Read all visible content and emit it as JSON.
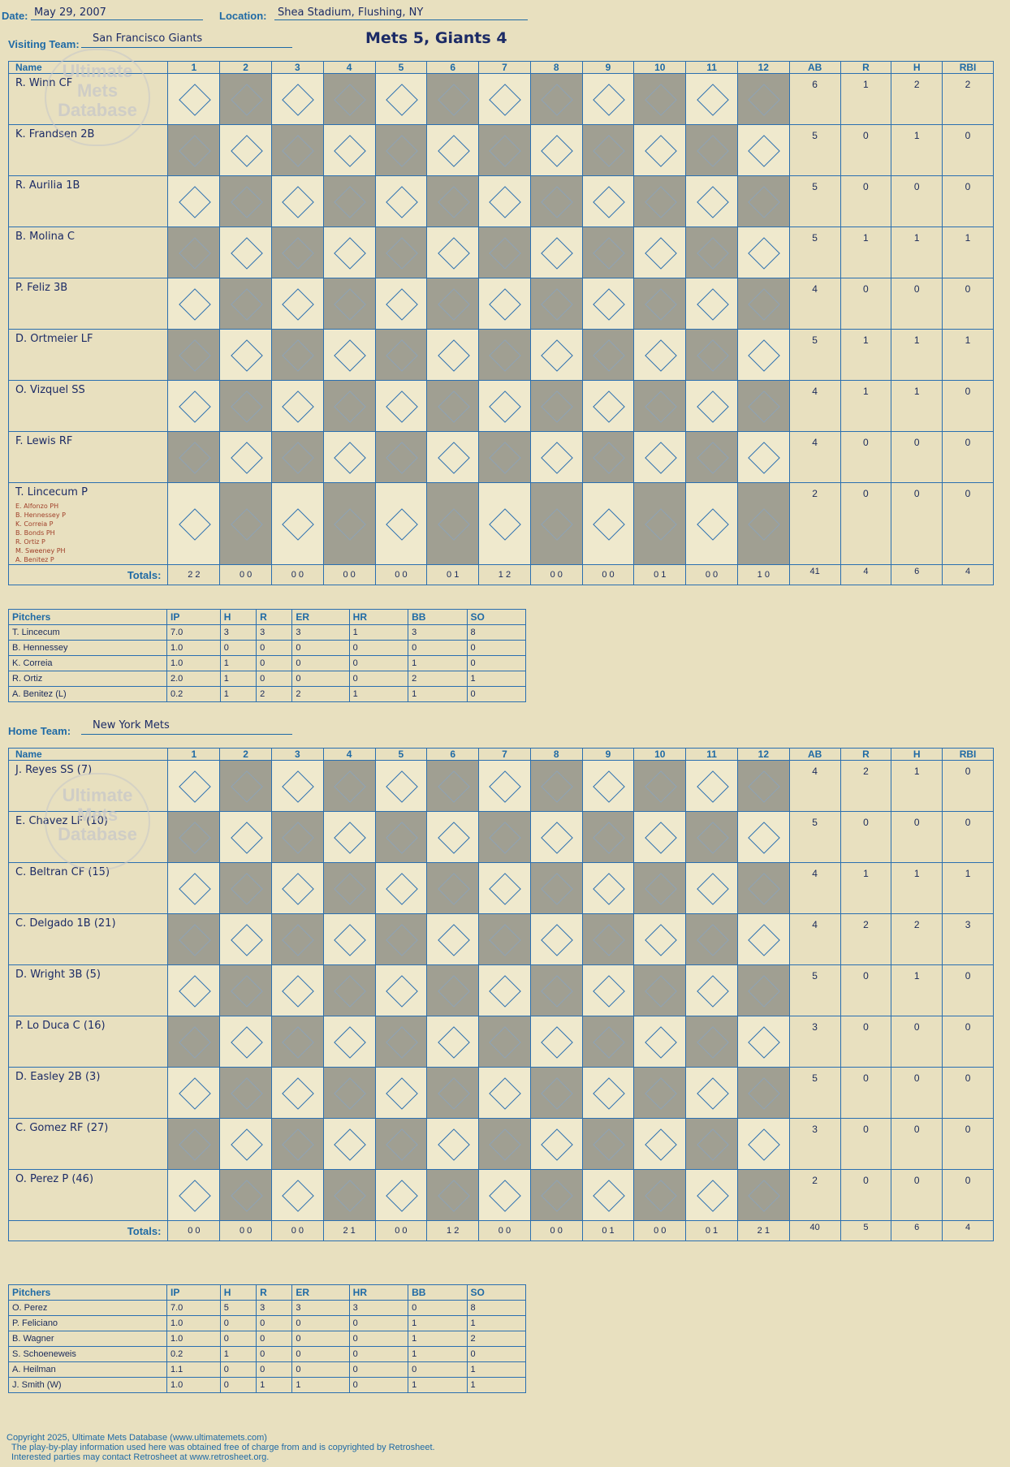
{
  "header": {
    "date_label": "Date:",
    "date": "May 29, 2007",
    "location_label": "Location:",
    "location": "Shea Stadium, Flushing, NY",
    "game_title": "Mets 5, Giants 4",
    "visiting_label": "Visiting Team:",
    "visiting_team": "San Francisco Giants",
    "home_label": "Home Team:",
    "home_team": "New York Mets"
  },
  "logo": {
    "line1": "Ultimate",
    "line2": "Mets",
    "line3": "Database"
  },
  "columns": {
    "name": "Name",
    "innings": [
      "1",
      "2",
      "3",
      "4",
      "5",
      "6",
      "7",
      "8",
      "9",
      "10",
      "11",
      "12"
    ],
    "ab": "AB",
    "r": "R",
    "h": "H",
    "rbi": "RBI"
  },
  "visitors": {
    "batters": [
      {
        "name": "R. Winn CF",
        "ab": "6",
        "r": "1",
        "h": "2",
        "rbi": "2"
      },
      {
        "name": "K. Frandsen 2B",
        "ab": "5",
        "r": "0",
        "h": "1",
        "rbi": "0"
      },
      {
        "name": "R. Aurilia 1B",
        "ab": "5",
        "r": "0",
        "h": "0",
        "rbi": "0"
      },
      {
        "name": "B. Molina C",
        "ab": "5",
        "r": "1",
        "h": "1",
        "rbi": "1"
      },
      {
        "name": "P. Feliz 3B",
        "ab": "4",
        "r": "0",
        "h": "0",
        "rbi": "0"
      },
      {
        "name": "D. Ortmeier LF",
        "ab": "5",
        "r": "1",
        "h": "1",
        "rbi": "1"
      },
      {
        "name": "O. Vizquel SS",
        "ab": "4",
        "r": "1",
        "h": "1",
        "rbi": "0"
      },
      {
        "name": "F. Lewis RF",
        "ab": "4",
        "r": "0",
        "h": "0",
        "rbi": "0"
      },
      {
        "name": "T. Lincecum P",
        "ab": "2",
        "r": "0",
        "h": "0",
        "rbi": "0"
      }
    ],
    "subs": [
      "E. Alfonzo PH",
      "B. Hennessey P",
      "K. Correia P",
      "B. Bonds PH",
      "R. Ortiz P",
      "M. Sweeney PH",
      "A. Benitez P"
    ],
    "totals_label": "Totals:",
    "totals": {
      "ab": "41",
      "r": "4",
      "h": "6",
      "rbi": "4"
    },
    "inning_rh": [
      "2 2",
      "0 0",
      "0 0",
      "0 0",
      "0 0",
      "0 1",
      "1 2",
      "0 0",
      "0 0",
      "0 1",
      "0 0",
      "1 0"
    ]
  },
  "home": {
    "batters": [
      {
        "name": "J. Reyes SS (7)",
        "ab": "4",
        "r": "2",
        "h": "1",
        "rbi": "0"
      },
      {
        "name": "E. Chavez LF (10)",
        "ab": "5",
        "r": "0",
        "h": "0",
        "rbi": "0"
      },
      {
        "name": "C. Beltran CF (15)",
        "ab": "4",
        "r": "1",
        "h": "1",
        "rbi": "1"
      },
      {
        "name": "C. Delgado 1B (21)",
        "ab": "4",
        "r": "2",
        "h": "2",
        "rbi": "3"
      },
      {
        "name": "D. Wright 3B (5)",
        "ab": "5",
        "r": "0",
        "h": "1",
        "rbi": "0"
      },
      {
        "name": "P. Lo Duca C (16)",
        "ab": "3",
        "r": "0",
        "h": "0",
        "rbi": "0"
      },
      {
        "name": "D. Easley 2B (3)",
        "ab": "5",
        "r": "0",
        "h": "0",
        "rbi": "0"
      },
      {
        "name": "C. Gomez RF (27)",
        "ab": "3",
        "r": "0",
        "h": "0",
        "rbi": "0"
      },
      {
        "name": "O. Perez P (46)",
        "ab": "2",
        "r": "0",
        "h": "0",
        "rbi": "0"
      }
    ],
    "totals_label": "Totals:",
    "totals": {
      "ab": "40",
      "r": "5",
      "h": "6",
      "rbi": "4"
    },
    "inning_rh": [
      "0 0",
      "0 0",
      "0 0",
      "2 1",
      "0 0",
      "1 2",
      "0 0",
      "0 0",
      "0 1",
      "0 0",
      "0 1",
      "2 1"
    ]
  },
  "visitor_pitchers": {
    "headers": [
      "Pitchers",
      "IP",
      "H",
      "R",
      "ER",
      "HR",
      "BB",
      "SO"
    ],
    "rows": [
      [
        "T. Lincecum",
        "7.0",
        "3",
        "3",
        "3",
        "1",
        "3",
        "8"
      ],
      [
        "B. Hennessey",
        "1.0",
        "0",
        "0",
        "0",
        "0",
        "0",
        "0"
      ],
      [
        "K. Correia",
        "1.0",
        "1",
        "0",
        "0",
        "0",
        "1",
        "0"
      ],
      [
        "R. Ortiz",
        "2.0",
        "1",
        "0",
        "0",
        "0",
        "2",
        "1"
      ],
      [
        "A. Benitez (L)",
        "0.2",
        "1",
        "2",
        "2",
        "1",
        "1",
        "0"
      ]
    ]
  },
  "home_pitchers": {
    "headers": [
      "Pitchers",
      "IP",
      "H",
      "R",
      "ER",
      "HR",
      "BB",
      "SO"
    ],
    "rows": [
      [
        "O. Perez",
        "7.0",
        "5",
        "3",
        "3",
        "3",
        "0",
        "8"
      ],
      [
        "P. Feliciano",
        "1.0",
        "0",
        "0",
        "0",
        "0",
        "1",
        "1"
      ],
      [
        "B. Wagner",
        "1.0",
        "0",
        "0",
        "0",
        "0",
        "1",
        "2"
      ],
      [
        "S. Schoeneweis",
        "0.2",
        "1",
        "0",
        "0",
        "0",
        "1",
        "0"
      ],
      [
        "A. Heilman",
        "1.1",
        "0",
        "0",
        "0",
        "0",
        "0",
        "1"
      ],
      [
        "J. Smith (W)",
        "1.0",
        "0",
        "1",
        "1",
        "0",
        "1",
        "1"
      ]
    ]
  },
  "footer": {
    "line1": "Copyright 2025, Ultimate Mets Database (www.ultimatemets.com)",
    "line2": "The play-by-play information used here was obtained free of charge from and is copyrighted by Retrosheet.",
    "line3": "Interested parties may contact Retrosheet at www.retrosheet.org."
  }
}
